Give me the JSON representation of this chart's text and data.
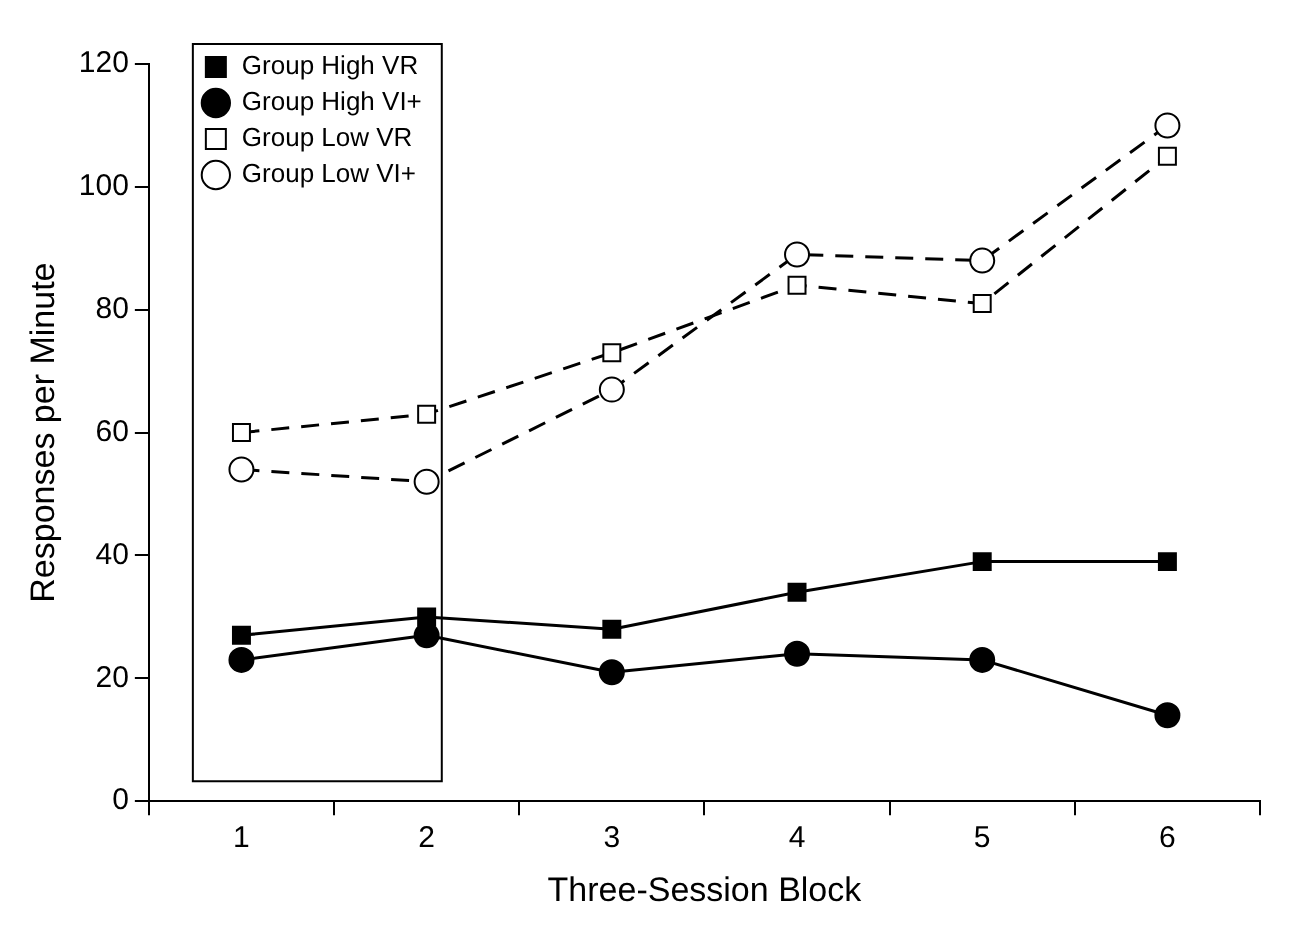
{
  "chart_data": {
    "type": "line",
    "xlabel": "Three-Session Block",
    "ylabel": "Responses per Minute",
    "categories": [
      "1",
      "2",
      "3",
      "4",
      "5",
      "6"
    ],
    "series": [
      {
        "name": "Group High VR",
        "color": "#000000",
        "marker": "square",
        "line_style": "solid",
        "values": [
          27,
          30,
          28,
          34,
          39,
          39
        ]
      },
      {
        "name": "Group High VI+",
        "color": "#000000",
        "marker": "circle",
        "line_style": "solid",
        "values": [
          23,
          27,
          21,
          24,
          23,
          14
        ]
      },
      {
        "name": "Group Low VR",
        "color": "#000000",
        "marker": "square",
        "line_style": "dashed",
        "values": [
          60,
          63,
          73,
          84,
          81,
          105
        ]
      },
      {
        "name": "Group Low VI+",
        "color": "#000000",
        "marker": "circle",
        "line_style": "dashed",
        "values": [
          54,
          52,
          67,
          89,
          88,
          110
        ]
      }
    ],
    "ylim": [
      0,
      120
    ],
    "yticks": [
      0,
      20,
      40,
      60,
      80,
      100,
      120
    ],
    "grid": false,
    "legend": "top left"
  }
}
